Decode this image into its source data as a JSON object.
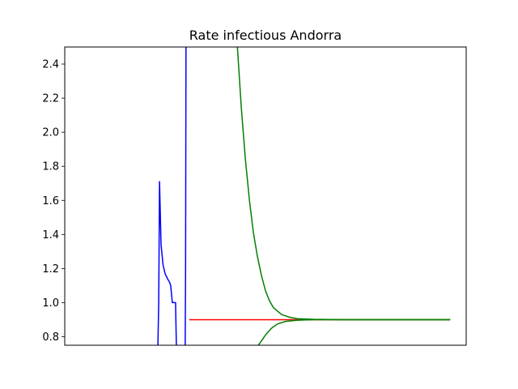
{
  "chart_data": {
    "type": "line",
    "title": "Rate infectious Andorra",
    "xlabel": "",
    "ylabel": "",
    "ylim": [
      0.75,
      2.5
    ],
    "xlim": [
      0,
      100
    ],
    "x_ticks_visible": false,
    "yticks": [
      0.8,
      1.0,
      1.2,
      1.4,
      1.6,
      1.8,
      2.0,
      2.2,
      2.4
    ],
    "ytick_labels": [
      "0.8",
      "1.0",
      "1.2",
      "1.4",
      "1.6",
      "1.8",
      "2.0",
      "2.2",
      "2.4"
    ],
    "grid": false,
    "series": [
      {
        "color": "#0000ff",
        "segments": [
          [
            [
              23.2,
              0.75
            ],
            [
              23.4,
              1.0
            ],
            [
              23.6,
              1.71
            ],
            [
              24.0,
              1.34
            ],
            [
              24.5,
              1.22
            ],
            [
              25.0,
              1.17
            ],
            [
              25.6,
              1.14
            ],
            [
              26.1,
              1.12
            ],
            [
              26.4,
              1.1
            ],
            [
              26.8,
              1.0
            ],
            [
              27.6,
              1.0
            ],
            [
              27.8,
              0.75
            ]
          ],
          [
            [
              30.0,
              0.75
            ],
            [
              30.1,
              1.2
            ],
            [
              30.2,
              2.5
            ]
          ]
        ]
      },
      {
        "color": "#ff0000",
        "segments": [
          [
            [
              31.0,
              0.9
            ],
            [
              96.0,
              0.9
            ]
          ]
        ]
      },
      {
        "color": "#008000",
        "segments": [
          [
            [
              43.0,
              2.5
            ],
            [
              44.0,
              2.14
            ],
            [
              45.0,
              1.84
            ],
            [
              46.0,
              1.6
            ],
            [
              47.0,
              1.41
            ],
            [
              48.0,
              1.27
            ],
            [
              49.0,
              1.16
            ],
            [
              50.0,
              1.07
            ],
            [
              51.0,
              1.01
            ],
            [
              52.0,
              0.97
            ],
            [
              54.0,
              0.93
            ],
            [
              56.0,
              0.914
            ],
            [
              58.0,
              0.906
            ],
            [
              62.0,
              0.902
            ],
            [
              70.0,
              0.9
            ],
            [
              96.0,
              0.9
            ]
          ],
          [
            [
              48.2,
              0.75
            ],
            [
              49.0,
              0.775
            ],
            [
              50.0,
              0.81
            ],
            [
              51.5,
              0.85
            ],
            [
              53.0,
              0.875
            ],
            [
              55.0,
              0.89
            ],
            [
              58.0,
              0.897
            ],
            [
              62.0,
              0.9
            ],
            [
              70.0,
              0.9
            ],
            [
              96.0,
              0.9
            ]
          ]
        ]
      }
    ]
  }
}
